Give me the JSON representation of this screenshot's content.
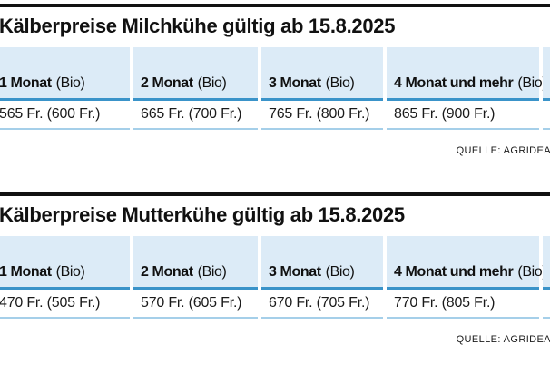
{
  "colors": {
    "header_cell_bg": "#dcebf7",
    "header_rule_blue": "#3a93c9",
    "row_rule_light_blue": "#a5cfe9",
    "section_top_rule": "#111111",
    "text": "#111111"
  },
  "chart_data": [
    {
      "type": "table",
      "title": "Kälberpreise Milchkühe gültig ab 15.8.2025",
      "source": "QUELLE: AGRIDEA",
      "columns": [
        {
          "month": "1 Monat",
          "bio": "(Bio)",
          "price": "565 Fr. (600 Fr.)",
          "price_fr": 565,
          "bio_price_fr": 600
        },
        {
          "month": "2 Monat",
          "bio": "(Bio)",
          "price": "665 Fr. (700 Fr.)",
          "price_fr": 665,
          "bio_price_fr": 700
        },
        {
          "month": "3 Monat",
          "bio": "(Bio)",
          "price": "765 Fr. (800 Fr.)",
          "price_fr": 765,
          "bio_price_fr": 800
        },
        {
          "month": "4 Monat und mehr",
          "bio": "(Bio)",
          "price": "865 Fr. (900 Fr.)",
          "price_fr": 865,
          "bio_price_fr": 900
        }
      ]
    },
    {
      "type": "table",
      "title": "Kälberpreise Mutterkühe gültig ab 15.8.2025",
      "source": "QUELLE: AGRIDEA",
      "columns": [
        {
          "month": "1 Monat",
          "bio": "(Bio)",
          "price": "470 Fr. (505 Fr.)",
          "price_fr": 470,
          "bio_price_fr": 505
        },
        {
          "month": "2 Monat",
          "bio": "(Bio)",
          "price": "570 Fr. (605 Fr.)",
          "price_fr": 570,
          "bio_price_fr": 605
        },
        {
          "month": "3 Monat",
          "bio": "(Bio)",
          "price": "670 Fr. (705 Fr.)",
          "price_fr": 670,
          "bio_price_fr": 705
        },
        {
          "month": "4 Monat und mehr",
          "bio": "(Bio)",
          "price": "770 Fr. (805 Fr.)",
          "price_fr": 770,
          "bio_price_fr": 805
        }
      ]
    }
  ]
}
